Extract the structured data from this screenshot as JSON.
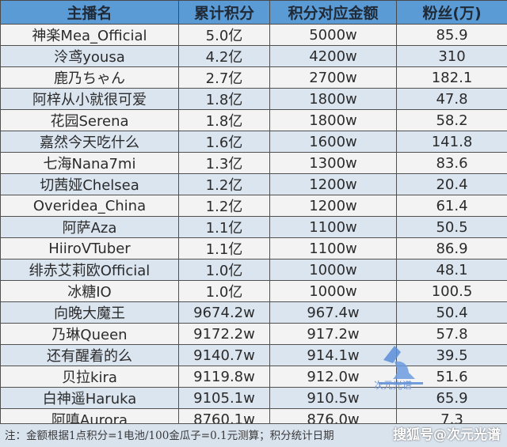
{
  "table": {
    "headers": [
      "主播名",
      "累计积分",
      "积分对应金额",
      "粉丝(万)"
    ],
    "rows": [
      [
        "神楽Mea_Official",
        "5.0亿",
        "5000w",
        "85.9"
      ],
      [
        "泠鸢yousa",
        "4.2亿",
        "4200w",
        "310"
      ],
      [
        "鹿乃ちゃん",
        "2.7亿",
        "2700w",
        "182.1"
      ],
      [
        "阿梓从小就很可爱",
        "1.8亿",
        "1800w",
        "47.8"
      ],
      [
        "花园Serena",
        "1.8亿",
        "1800w",
        "58.2"
      ],
      [
        "嘉然今天吃什么",
        "1.6亿",
        "1600w",
        "141.8"
      ],
      [
        "七海Nana7mi",
        "1.3亿",
        "1300w",
        "83.6"
      ],
      [
        "切茜娅Chelsea",
        "1.2亿",
        "1200w",
        "20.4"
      ],
      [
        "Overidea_China",
        "1.2亿",
        "1200w",
        "61.4"
      ],
      [
        "阿萨Aza",
        "1.1亿",
        "1100w",
        "50.5"
      ],
      [
        "HiiroVTuber",
        "1.1亿",
        "1100w",
        "86.9"
      ],
      [
        "绯赤艾莉欧Official",
        "1.0亿",
        "1000w",
        "48.1"
      ],
      [
        "冰糖IO",
        "1.0亿",
        "1000w",
        "100.5"
      ],
      [
        "向晚大魔王",
        "9674.2w",
        "967.4w",
        "50.4"
      ],
      [
        "乃琳Queen",
        "9172.2w",
        "917.2w",
        "57.8"
      ],
      [
        "还有醒着的么",
        "9140.7w",
        "914.1w",
        "39.5"
      ],
      [
        "贝拉kira",
        "9119.8w",
        "912.0w",
        "51.6"
      ],
      [
        "白神遥Haruka",
        "9105.1w",
        "910.5w",
        "65.9"
      ],
      [
        "阿嗔Aurora",
        "8760.1w",
        "876.0w",
        "7.3"
      ]
    ]
  },
  "footer": {
    "note": "注：金额根据1点积分=1电池/100金瓜子=0.1元测算；积分统计日期",
    "watermark": "搜狐号@次元光谱"
  },
  "watermark_logo": {
    "text": "次元光谱",
    "icon": "lamp-logo-icon"
  },
  "colors": {
    "header": "#5b9bd5",
    "row_alt": "#dbe5f0",
    "row": "#f3f3f3"
  }
}
